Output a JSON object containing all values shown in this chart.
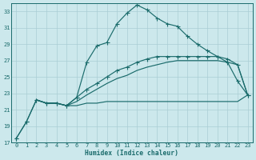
{
  "xlabel": "Humidex (Indice chaleur)",
  "bg_color": "#cce8ec",
  "grid_color": "#aacdd4",
  "line_color": "#1a6b6b",
  "xlim_min": -0.5,
  "xlim_max": 23.5,
  "ylim_min": 17,
  "ylim_max": 34,
  "xticks": [
    0,
    1,
    2,
    3,
    4,
    5,
    6,
    7,
    8,
    9,
    10,
    11,
    12,
    13,
    14,
    15,
    16,
    17,
    18,
    19,
    20,
    21,
    22,
    23
  ],
  "yticks": [
    17,
    19,
    21,
    23,
    25,
    27,
    29,
    31,
    33
  ],
  "peak_x": [
    0,
    1,
    2,
    3,
    4,
    5,
    6,
    7,
    8,
    9,
    10,
    11,
    12,
    13,
    14,
    15,
    16,
    17,
    18,
    19,
    20,
    21,
    22,
    23
  ],
  "peak_y": [
    17.5,
    19.5,
    22.2,
    21.8,
    21.8,
    21.5,
    22.5,
    26.8,
    28.8,
    29.2,
    31.5,
    32.8,
    33.8,
    33.2,
    32.2,
    31.5,
    31.2,
    30.0,
    29.0,
    28.2,
    27.5,
    26.8,
    24.5,
    22.8
  ],
  "mid_x": [
    0,
    1,
    2,
    3,
    4,
    5,
    6,
    7,
    8,
    9,
    10,
    11,
    12,
    13,
    14,
    15,
    16,
    17,
    18,
    19,
    20,
    21,
    22,
    23
  ],
  "mid_y": [
    17.5,
    19.5,
    22.2,
    21.8,
    21.8,
    21.5,
    22.5,
    23.5,
    24.2,
    25.0,
    25.8,
    26.2,
    26.8,
    27.2,
    27.5,
    27.5,
    27.5,
    27.5,
    27.5,
    27.5,
    27.5,
    27.2,
    26.5,
    22.8
  ],
  "low_x": [
    2,
    3,
    4,
    5,
    6,
    7,
    8,
    9,
    10,
    11,
    12,
    13,
    14,
    15,
    16,
    17,
    18,
    19,
    20,
    21,
    22,
    23
  ],
  "low_y": [
    22.2,
    21.8,
    21.8,
    21.5,
    21.5,
    21.8,
    21.8,
    22.0,
    22.0,
    22.0,
    22.0,
    22.0,
    22.0,
    22.0,
    22.0,
    22.0,
    22.0,
    22.0,
    22.0,
    22.0,
    22.0,
    22.8
  ],
  "rise_x": [
    2,
    3,
    4,
    5,
    6,
    7,
    8,
    9,
    10,
    11,
    12,
    13,
    14,
    15,
    16,
    17,
    18,
    19,
    20,
    21,
    22,
    23
  ],
  "rise_y": [
    22.2,
    21.8,
    21.8,
    21.5,
    22.0,
    22.8,
    23.5,
    24.2,
    24.8,
    25.2,
    25.8,
    26.2,
    26.5,
    26.8,
    27.0,
    27.0,
    27.0,
    27.0,
    27.0,
    26.8,
    26.5,
    22.8
  ]
}
